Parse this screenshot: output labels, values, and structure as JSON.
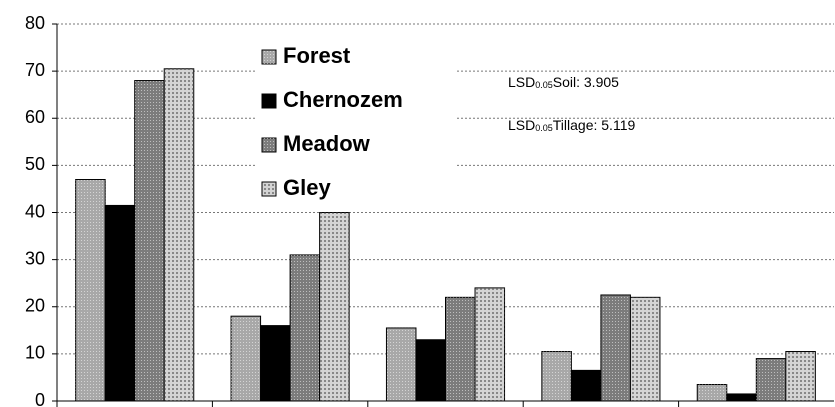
{
  "chart_data": {
    "type": "bar",
    "categories": [
      null,
      null,
      null,
      null,
      null
    ],
    "series": [
      {
        "name": "Forest",
        "color": "#a8a8a8",
        "values": [
          47,
          18,
          15.5,
          10.5,
          3.5
        ]
      },
      {
        "name": "Chernozem",
        "color": "#000000",
        "values": [
          41.5,
          16,
          13,
          6.5,
          1.5
        ]
      },
      {
        "name": "Meadow",
        "color": "#7c7c7c",
        "values": [
          68,
          31,
          22,
          22.5,
          9
        ]
      },
      {
        "name": "Gley",
        "color": "#d4d4d4",
        "values": [
          70.5,
          40,
          24,
          22,
          10.5
        ]
      }
    ],
    "annotations": [
      [
        "LSD",
        "0.05",
        "Soil: 3.905"
      ],
      [
        "LSD",
        "0.05",
        "Tillage: 5.119"
      ]
    ],
    "ylim": [
      0,
      80
    ],
    "yticks": [
      0,
      10,
      20,
      30,
      40,
      50,
      60,
      70,
      80
    ],
    "grid": true
  }
}
